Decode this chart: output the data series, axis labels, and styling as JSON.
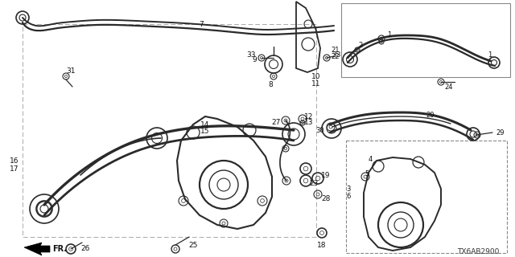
{
  "bg_color": "#ffffff",
  "diagram_code": "TX6AB2900",
  "gray": "#2a2a2a",
  "lgray": "#666666",
  "border_color": "#888888"
}
